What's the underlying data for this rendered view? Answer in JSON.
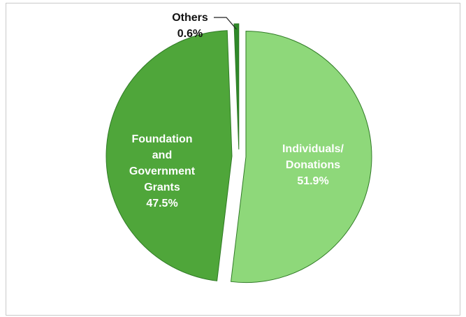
{
  "chart_data": {
    "type": "pie",
    "slices": [
      {
        "name": "Individuals/ Donations",
        "label_lines": [
          "Individuals/",
          "Donations"
        ],
        "value": 51.9,
        "value_label": "51.9%",
        "color": "#8ed87a",
        "text_color": "#ffffff"
      },
      {
        "name": "Foundation and Government Grants",
        "label_lines": [
          "Foundation",
          "and",
          "Government",
          "Grants"
        ],
        "value": 47.5,
        "value_label": "47.5%",
        "color": "#4fa63a",
        "text_color": "#ffffff"
      },
      {
        "name": "Others",
        "label_lines": [
          "Others"
        ],
        "value": 0.6,
        "value_label": "0.6%",
        "color": "#2f8a2a",
        "text_color": "#111111"
      }
    ],
    "edge_color": "#2f7a25",
    "legend": "none"
  }
}
